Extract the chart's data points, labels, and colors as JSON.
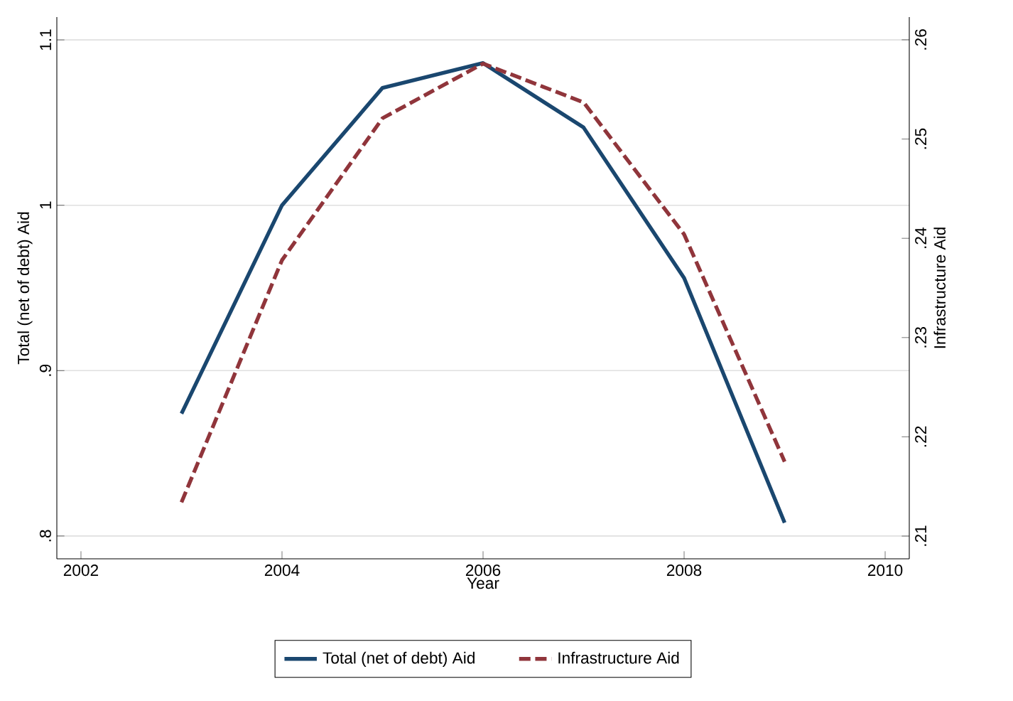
{
  "chart_data": {
    "type": "line",
    "xlabel": "Year",
    "ylabel": "Total (net of debt) Aid",
    "y2label": "Infrastructure Aid",
    "x": [
      2003,
      2004,
      2005,
      2006,
      2007,
      2008,
      2009
    ],
    "series": [
      {
        "name": "Total (net of debt) Aid",
        "color": "#1a476f",
        "line_style": "solid",
        "values": [
          0.874,
          1.0,
          1.071,
          1.086,
          1.047,
          0.956,
          0.808
        ]
      },
      {
        "name": "Infrastructure Aid",
        "color": "#90353b",
        "line_style": "dashed",
        "axis": "y2",
        "values": [
          0.2134,
          0.2378,
          0.2521,
          0.2576,
          0.2537,
          0.2404,
          0.2175
        ]
      }
    ],
    "xlim": [
      2001.76,
      2010.24
    ],
    "xticks": [
      2002,
      2004,
      2006,
      2008,
      2010
    ],
    "ylim": [
      0.8,
      1.1
    ],
    "yticks": [
      {
        "value": 0.8,
        "label": ".8"
      },
      {
        "value": 0.9,
        "label": ".9"
      },
      1,
      1.1
    ],
    "y2lim": [
      0.21,
      0.26
    ],
    "y2ticks": [
      {
        "value": 0.21,
        "label": ".21"
      },
      {
        "value": 0.22,
        "label": ".22"
      },
      {
        "value": 0.23,
        "label": ".23"
      },
      {
        "value": 0.24,
        "label": ".24"
      },
      {
        "value": 0.25,
        "label": ".25"
      },
      {
        "value": 0.26,
        "label": ".26"
      }
    ],
    "grid": "y",
    "legend": "bottom",
    "marker": "none"
  }
}
